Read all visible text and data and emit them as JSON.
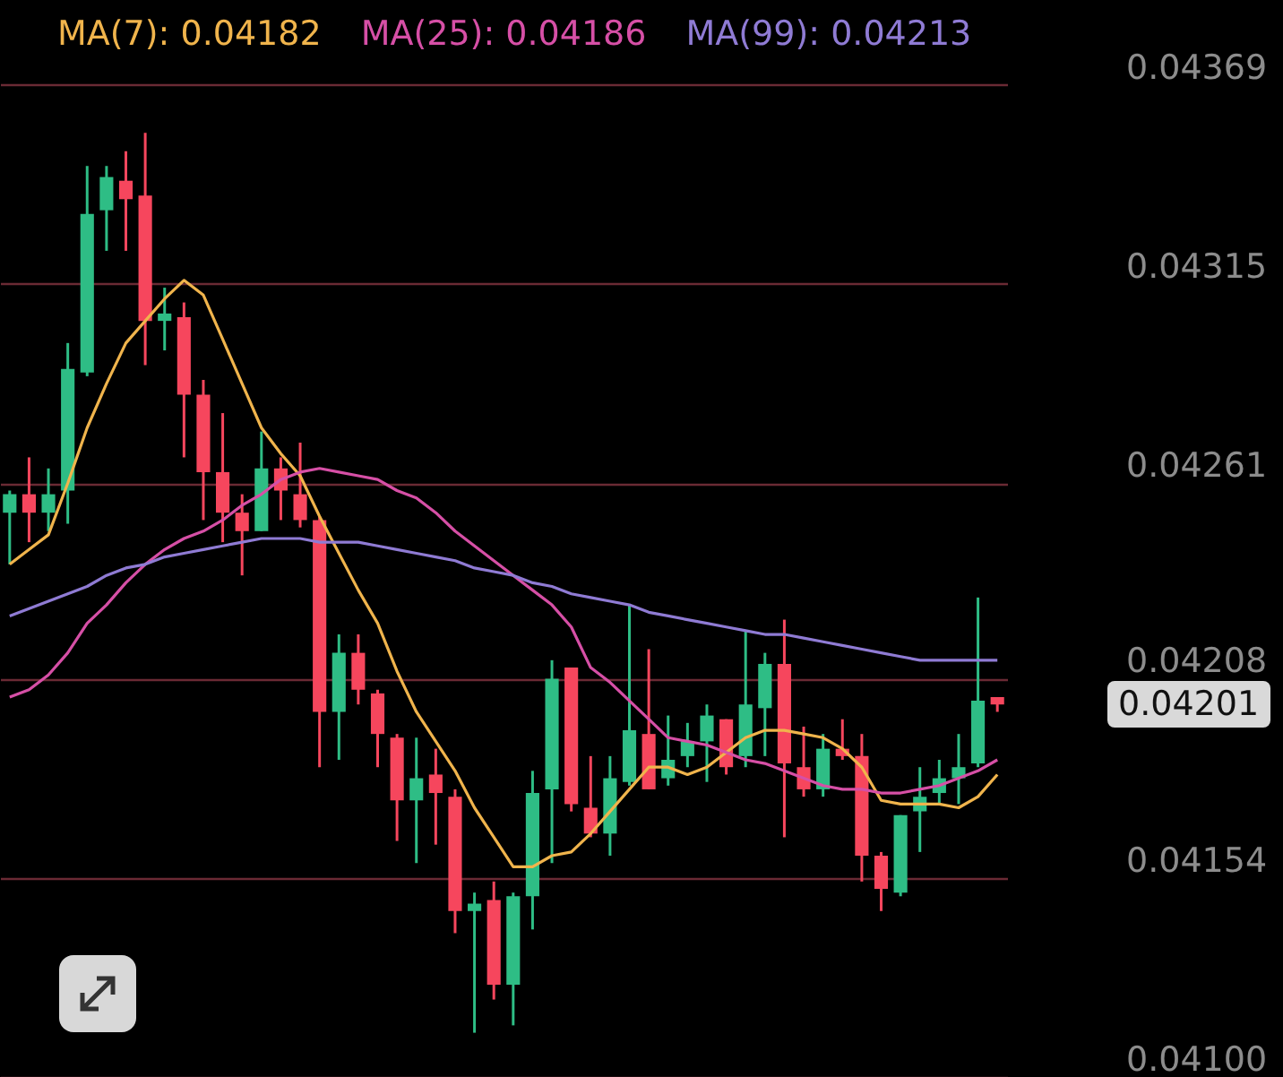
{
  "chart_data": {
    "type": "candlestick",
    "categories": [
      null,
      null,
      null,
      null,
      null,
      null,
      null,
      null,
      null,
      null,
      null,
      null,
      null,
      null,
      null,
      null,
      null,
      null,
      null,
      null,
      null,
      null,
      null,
      null,
      null,
      null,
      null,
      null,
      null,
      null,
      null,
      null,
      null,
      null,
      null,
      null,
      null,
      null,
      null,
      null,
      null,
      null,
      null,
      null,
      null,
      null,
      null,
      null,
      null,
      null,
      null,
      null
    ],
    "ohlc": [
      [
        0.04253,
        0.04259,
        0.04239,
        0.04258
      ],
      [
        0.04258,
        0.04268,
        0.04245,
        0.04253
      ],
      [
        0.04253,
        0.04265,
        0.04248,
        0.04258
      ],
      [
        0.04259,
        0.04299,
        0.0425,
        0.04292
      ],
      [
        0.04291,
        0.04347,
        0.0429,
        0.04334
      ],
      [
        0.04335,
        0.04347,
        0.04324,
        0.04344
      ],
      [
        0.04343,
        0.04351,
        0.04324,
        0.04338
      ],
      [
        0.04339,
        0.04356,
        0.04293,
        0.04305
      ],
      [
        0.04305,
        0.04314,
        0.04297,
        0.04307
      ],
      [
        0.04306,
        0.0431,
        0.04268,
        0.04285
      ],
      [
        0.04285,
        0.04289,
        0.04251,
        0.04264
      ],
      [
        0.04264,
        0.0428,
        0.04245,
        0.04253
      ],
      [
        0.04253,
        0.04258,
        0.04236,
        0.04248
      ],
      [
        0.04248,
        0.04275,
        0.04248,
        0.04265
      ],
      [
        0.04265,
        0.04268,
        0.04251,
        0.04259
      ],
      [
        0.04258,
        0.04272,
        0.04249,
        0.04251
      ],
      [
        0.04251,
        0.04252,
        0.04184,
        0.04199
      ],
      [
        0.04199,
        0.0422,
        0.04186,
        0.04215
      ],
      [
        0.04215,
        0.0422,
        0.04201,
        0.04205
      ],
      [
        0.04204,
        0.04205,
        0.04184,
        0.04193
      ],
      [
        0.04192,
        0.04193,
        0.04164,
        0.04175
      ],
      [
        0.04175,
        0.04192,
        0.04158,
        0.04181
      ],
      [
        0.04182,
        0.04189,
        0.04163,
        0.04177
      ],
      [
        0.04176,
        0.04178,
        0.04139,
        0.04145
      ],
      [
        0.04145,
        0.0415,
        0.04112,
        0.04147
      ],
      [
        0.04148,
        0.04153,
        0.04121,
        0.04125
      ],
      [
        0.04125,
        0.0415,
        0.04114,
        0.04149
      ],
      [
        0.04149,
        0.04183,
        0.0414,
        0.04177
      ],
      [
        0.04178,
        0.04213,
        0.04158,
        0.04208
      ],
      [
        0.04211,
        0.04211,
        0.04172,
        0.04174
      ],
      [
        0.04173,
        0.04187,
        0.04165,
        0.04166
      ],
      [
        0.04166,
        0.04187,
        0.0416,
        0.04181
      ],
      [
        0.0418,
        0.04228,
        0.04179,
        0.04194
      ],
      [
        0.04193,
        0.04216,
        0.04178,
        0.04178
      ],
      [
        0.04181,
        0.04198,
        0.04179,
        0.04186
      ],
      [
        0.04187,
        0.04196,
        0.04184,
        0.04191
      ],
      [
        0.04191,
        0.04201,
        0.0418,
        0.04198
      ],
      [
        0.04197,
        0.04197,
        0.04182,
        0.04184
      ],
      [
        0.04187,
        0.04221,
        0.04184,
        0.04201
      ],
      [
        0.042,
        0.04215,
        0.04187,
        0.04212
      ],
      [
        0.04212,
        0.04224,
        0.04165,
        0.04185
      ],
      [
        0.04184,
        0.04195,
        0.04176,
        0.04178
      ],
      [
        0.04178,
        0.04193,
        0.04176,
        0.04189
      ],
      [
        0.04189,
        0.04197,
        0.04186,
        0.04187
      ],
      [
        0.04187,
        0.04193,
        0.04153,
        0.0416
      ],
      [
        0.0416,
        0.04161,
        0.04145,
        0.04151
      ],
      [
        0.0415,
        0.04171,
        0.04149,
        0.04171
      ],
      [
        0.04172,
        0.04184,
        0.04161,
        0.04176
      ],
      [
        0.04177,
        0.04186,
        0.04174,
        0.04181
      ],
      [
        0.04181,
        0.04193,
        0.04174,
        0.04184
      ],
      [
        0.04185,
        0.0423,
        0.04184,
        0.04202
      ],
      [
        0.04203,
        0.04203,
        0.04199,
        0.04201
      ]
    ],
    "colors": [
      "#2ebd85",
      "#f6465d",
      "#2ebd85",
      "#2ebd85",
      "#2ebd85",
      "#2ebd85",
      "#f6465d",
      "#f6465d",
      "#2ebd85",
      "#f6465d",
      "#f6465d",
      "#f6465d",
      "#f6465d",
      "#2ebd85",
      "#f6465d",
      "#f6465d",
      "#f6465d",
      "#2ebd85",
      "#f6465d",
      "#f6465d",
      "#f6465d",
      "#2ebd85",
      "#f6465d",
      "#f6465d",
      "#2ebd85",
      "#f6465d",
      "#2ebd85",
      "#2ebd85",
      "#2ebd85",
      "#f6465d",
      "#f6465d",
      "#2ebd85",
      "#2ebd85",
      "#f6465d",
      "#2ebd85",
      "#2ebd85",
      "#2ebd85",
      "#f6465d",
      "#2ebd85",
      "#2ebd85",
      "#f6465d",
      "#f6465d",
      "#2ebd85",
      "#f6465d",
      "#f6465d",
      "#f6465d",
      "#2ebd85",
      "#2ebd85",
      "#2ebd85",
      "#2ebd85",
      "#2ebd85",
      "#f6465d"
    ],
    "series": [
      {
        "type": "line",
        "name": "MA(7): 0.04182",
        "color": "#f0b44c",
        "values": [
          0.04239,
          0.04243,
          0.04247,
          0.04261,
          0.04276,
          0.04288,
          0.04299,
          0.04305,
          0.04311,
          0.04316,
          0.04312,
          0.043,
          0.04288,
          0.04276,
          0.04269,
          0.04263,
          0.04252,
          0.04242,
          0.04232,
          0.04223,
          0.0421,
          0.04199,
          0.04191,
          0.04183,
          0.04173,
          0.04165,
          0.04157,
          0.04157,
          0.0416,
          0.04161,
          0.04166,
          0.04172,
          0.04178,
          0.04184,
          0.04184,
          0.04182,
          0.04184,
          0.04188,
          0.04192,
          0.04194,
          0.04194,
          0.04193,
          0.04192,
          0.04189,
          0.04184,
          0.04175,
          0.04174,
          0.04174,
          0.04174,
          0.04173,
          0.04176,
          0.04182
        ]
      },
      {
        "type": "line",
        "name": "MA(25): 0.04186",
        "color": "#d64fa6",
        "values": [
          0.04203,
          0.04205,
          0.04209,
          0.04215,
          0.04223,
          0.04228,
          0.04234,
          0.04239,
          0.04243,
          0.04246,
          0.04248,
          0.04251,
          0.04255,
          0.04258,
          0.04262,
          0.04264,
          0.04265,
          0.04264,
          0.04263,
          0.04262,
          0.04259,
          0.04257,
          0.04253,
          0.04248,
          0.04244,
          0.0424,
          0.04236,
          0.04232,
          0.04228,
          0.04222,
          0.04211,
          0.04207,
          0.04202,
          0.04197,
          0.04192,
          0.04191,
          0.0419,
          0.04188,
          0.04186,
          0.04185,
          0.04183,
          0.04181,
          0.04179,
          0.04178,
          0.04178,
          0.04177,
          0.04177,
          0.04178,
          0.04179,
          0.04181,
          0.04183,
          0.04186
        ]
      },
      {
        "type": "line",
        "name": "MA(99): 0.04213",
        "color": "#8f7bd4",
        "values": [
          0.04225,
          0.04227,
          0.04229,
          0.04231,
          0.04233,
          0.04236,
          0.04238,
          0.04239,
          0.04241,
          0.04242,
          0.04243,
          0.04244,
          0.04245,
          0.04246,
          0.04246,
          0.04246,
          0.04245,
          0.04245,
          0.04245,
          0.04244,
          0.04243,
          0.04242,
          0.04241,
          0.0424,
          0.04238,
          0.04237,
          0.04236,
          0.04234,
          0.04233,
          0.04231,
          0.0423,
          0.04229,
          0.04228,
          0.04226,
          0.04225,
          0.04224,
          0.04223,
          0.04222,
          0.04221,
          0.0422,
          0.0422,
          0.04219,
          0.04218,
          0.04217,
          0.04216,
          0.04215,
          0.04214,
          0.04213,
          0.04213,
          0.04213,
          0.04213,
          0.04213
        ]
      }
    ],
    "ylim": [
      0.041,
      0.04392
    ],
    "yticks": [
      {
        "value": 0.041,
        "label": "0.04100"
      },
      0.04154,
      0.04208,
      0.04261,
      0.04315,
      0.04369
    ],
    "annotations": [
      "0.04201"
    ],
    "grid": "y",
    "legend": "top left"
  }
}
